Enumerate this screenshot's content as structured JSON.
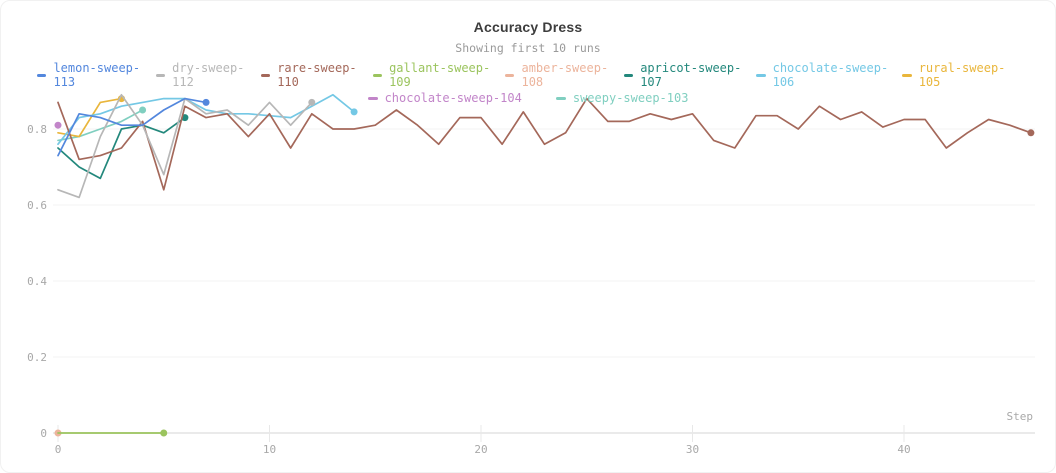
{
  "header": {
    "title": "Accuracy Dress",
    "subtitle": "Showing first 10 runs"
  },
  "legend": {
    "rows": [
      [
        "lemon-sweep-113",
        "dry-sweep-112",
        "rare-sweep-110",
        "gallant-sweep-109",
        "amber-sweep-108",
        "apricot-sweep-107",
        "chocolate-sweep-106",
        "rural-sweep-105"
      ],
      [
        "chocolate-sweep-104",
        "sweepy-sweep-103"
      ]
    ]
  },
  "axes": {
    "x_label": "Step",
    "x_ticks": [
      {
        "label": "0",
        "step": 0
      },
      {
        "label": "10",
        "step": 10
      },
      {
        "label": "20",
        "step": 20
      },
      {
        "label": "30",
        "step": 30
      },
      {
        "label": "40",
        "step": 40
      }
    ],
    "y_ticks": [
      {
        "label": "0",
        "value": 0
      },
      {
        "label": "0.2",
        "value": 0.2
      },
      {
        "label": "0.4",
        "value": 0.4
      },
      {
        "label": "0.6",
        "value": 0.6
      },
      {
        "label": "0.8",
        "value": 0.8
      }
    ]
  },
  "chart_data": {
    "type": "line",
    "title": "Accuracy Dress",
    "subtitle": "Showing first 10 runs",
    "xlabel": "Step",
    "ylabel": "",
    "xlim": [
      0,
      47
    ],
    "ylim": [
      0,
      0.9
    ],
    "grid": "horizontal-faint",
    "legend_position": "top",
    "series": [
      {
        "name": "lemon-sweep-113",
        "color": "#5387DD",
        "start_step": 0,
        "end_marker": true,
        "values": [
          0.73,
          0.84,
          0.83,
          0.81,
          0.81,
          0.85,
          0.88,
          0.87
        ]
      },
      {
        "name": "dry-sweep-112",
        "color": "#B7B7B7",
        "start_step": 0,
        "end_marker": true,
        "values": [
          0.64,
          0.62,
          0.78,
          0.89,
          0.81,
          0.68,
          0.88,
          0.84,
          0.85,
          0.81,
          0.87,
          0.81,
          0.87
        ]
      },
      {
        "name": "rare-sweep-110",
        "color": "#A4685A",
        "start_step": 0,
        "end_marker": true,
        "values": [
          0.87,
          0.72,
          0.73,
          0.75,
          0.82,
          0.64,
          0.86,
          0.83,
          0.84,
          0.78,
          0.84,
          0.75,
          0.84,
          0.8,
          0.8,
          0.81,
          0.85,
          0.81,
          0.76,
          0.83,
          0.83,
          0.76,
          0.845,
          0.76,
          0.79,
          0.88,
          0.82,
          0.82,
          0.84,
          0.825,
          0.84,
          0.77,
          0.75,
          0.835,
          0.835,
          0.8,
          0.86,
          0.825,
          0.845,
          0.805,
          0.825,
          0.825,
          0.75,
          0.79,
          0.825,
          0.81,
          0.79
        ]
      },
      {
        "name": "gallant-sweep-109",
        "color": "#9BC45E",
        "start_step": 0,
        "end_marker": true,
        "values": [
          0,
          0,
          0,
          0,
          0,
          0
        ]
      },
      {
        "name": "amber-sweep-108",
        "color": "#ECB49C",
        "start_step": 0,
        "end_marker": true,
        "values": [
          0
        ]
      },
      {
        "name": "apricot-sweep-107",
        "color": "#23887C",
        "start_step": 0,
        "end_marker": true,
        "values": [
          0.75,
          0.7,
          0.67,
          0.8,
          0.81,
          0.79,
          0.83
        ]
      },
      {
        "name": "chocolate-sweep-106",
        "color": "#74C8E5",
        "start_step": 0,
        "end_marker": true,
        "values": [
          0.76,
          0.83,
          0.84,
          0.86,
          0.87,
          0.88,
          0.88,
          0.85,
          0.84,
          0.84,
          0.835,
          0.83,
          0.86,
          0.89,
          0.845
        ]
      },
      {
        "name": "rural-sweep-105",
        "color": "#E9B63C",
        "start_step": 0,
        "end_marker": true,
        "values": [
          0.79,
          0.78,
          0.87,
          0.88
        ]
      },
      {
        "name": "chocolate-sweep-104",
        "color": "#C285C9",
        "start_step": 0,
        "end_marker": true,
        "values": [
          0.81
        ]
      },
      {
        "name": "sweepy-sweep-103",
        "color": "#80CFC0",
        "start_step": 0,
        "end_marker": true,
        "values": [
          0.77,
          0.78,
          0.8,
          0.82,
          0.85
        ]
      }
    ]
  }
}
